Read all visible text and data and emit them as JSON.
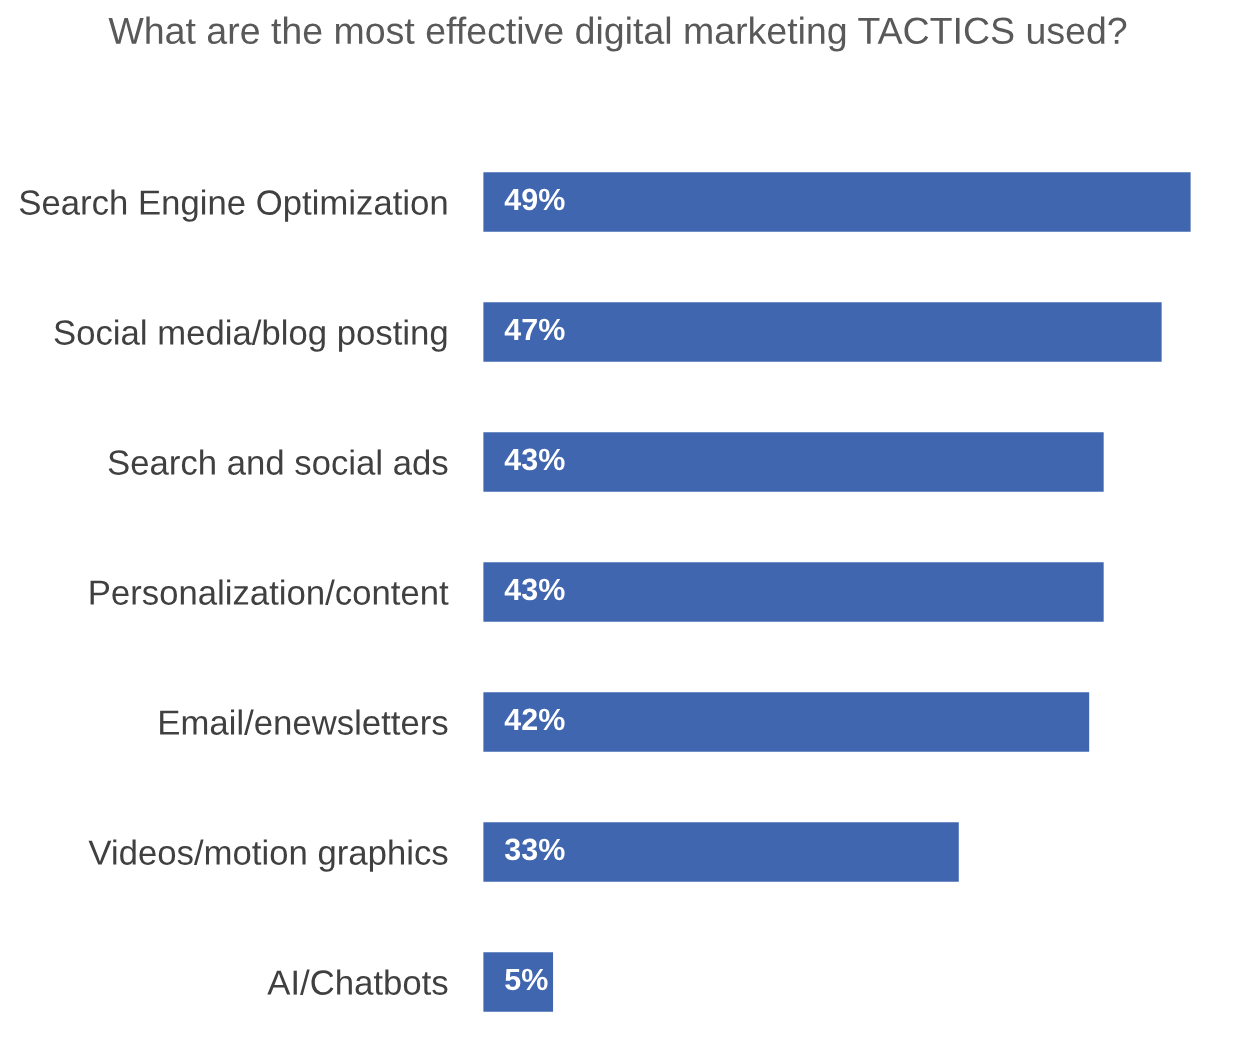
{
  "chart_data": {
    "type": "bar",
    "orientation": "horizontal",
    "title": "What are the most effective digital marketing TACTICS used?",
    "categories": [
      "Search Engine Optimization",
      "Social media/blog posting",
      "Search and social ads",
      "Personalization/content",
      "Email/enewsletters",
      "Videos/motion graphics",
      "AI/Chatbots"
    ],
    "values": [
      49,
      47,
      43,
      43,
      42,
      33,
      5
    ],
    "value_labels": [
      "49%",
      "47%",
      "43%",
      "43%",
      "42%",
      "33%",
      "5%"
    ],
    "color": "#4166b0",
    "tick_labels": "y"
  }
}
